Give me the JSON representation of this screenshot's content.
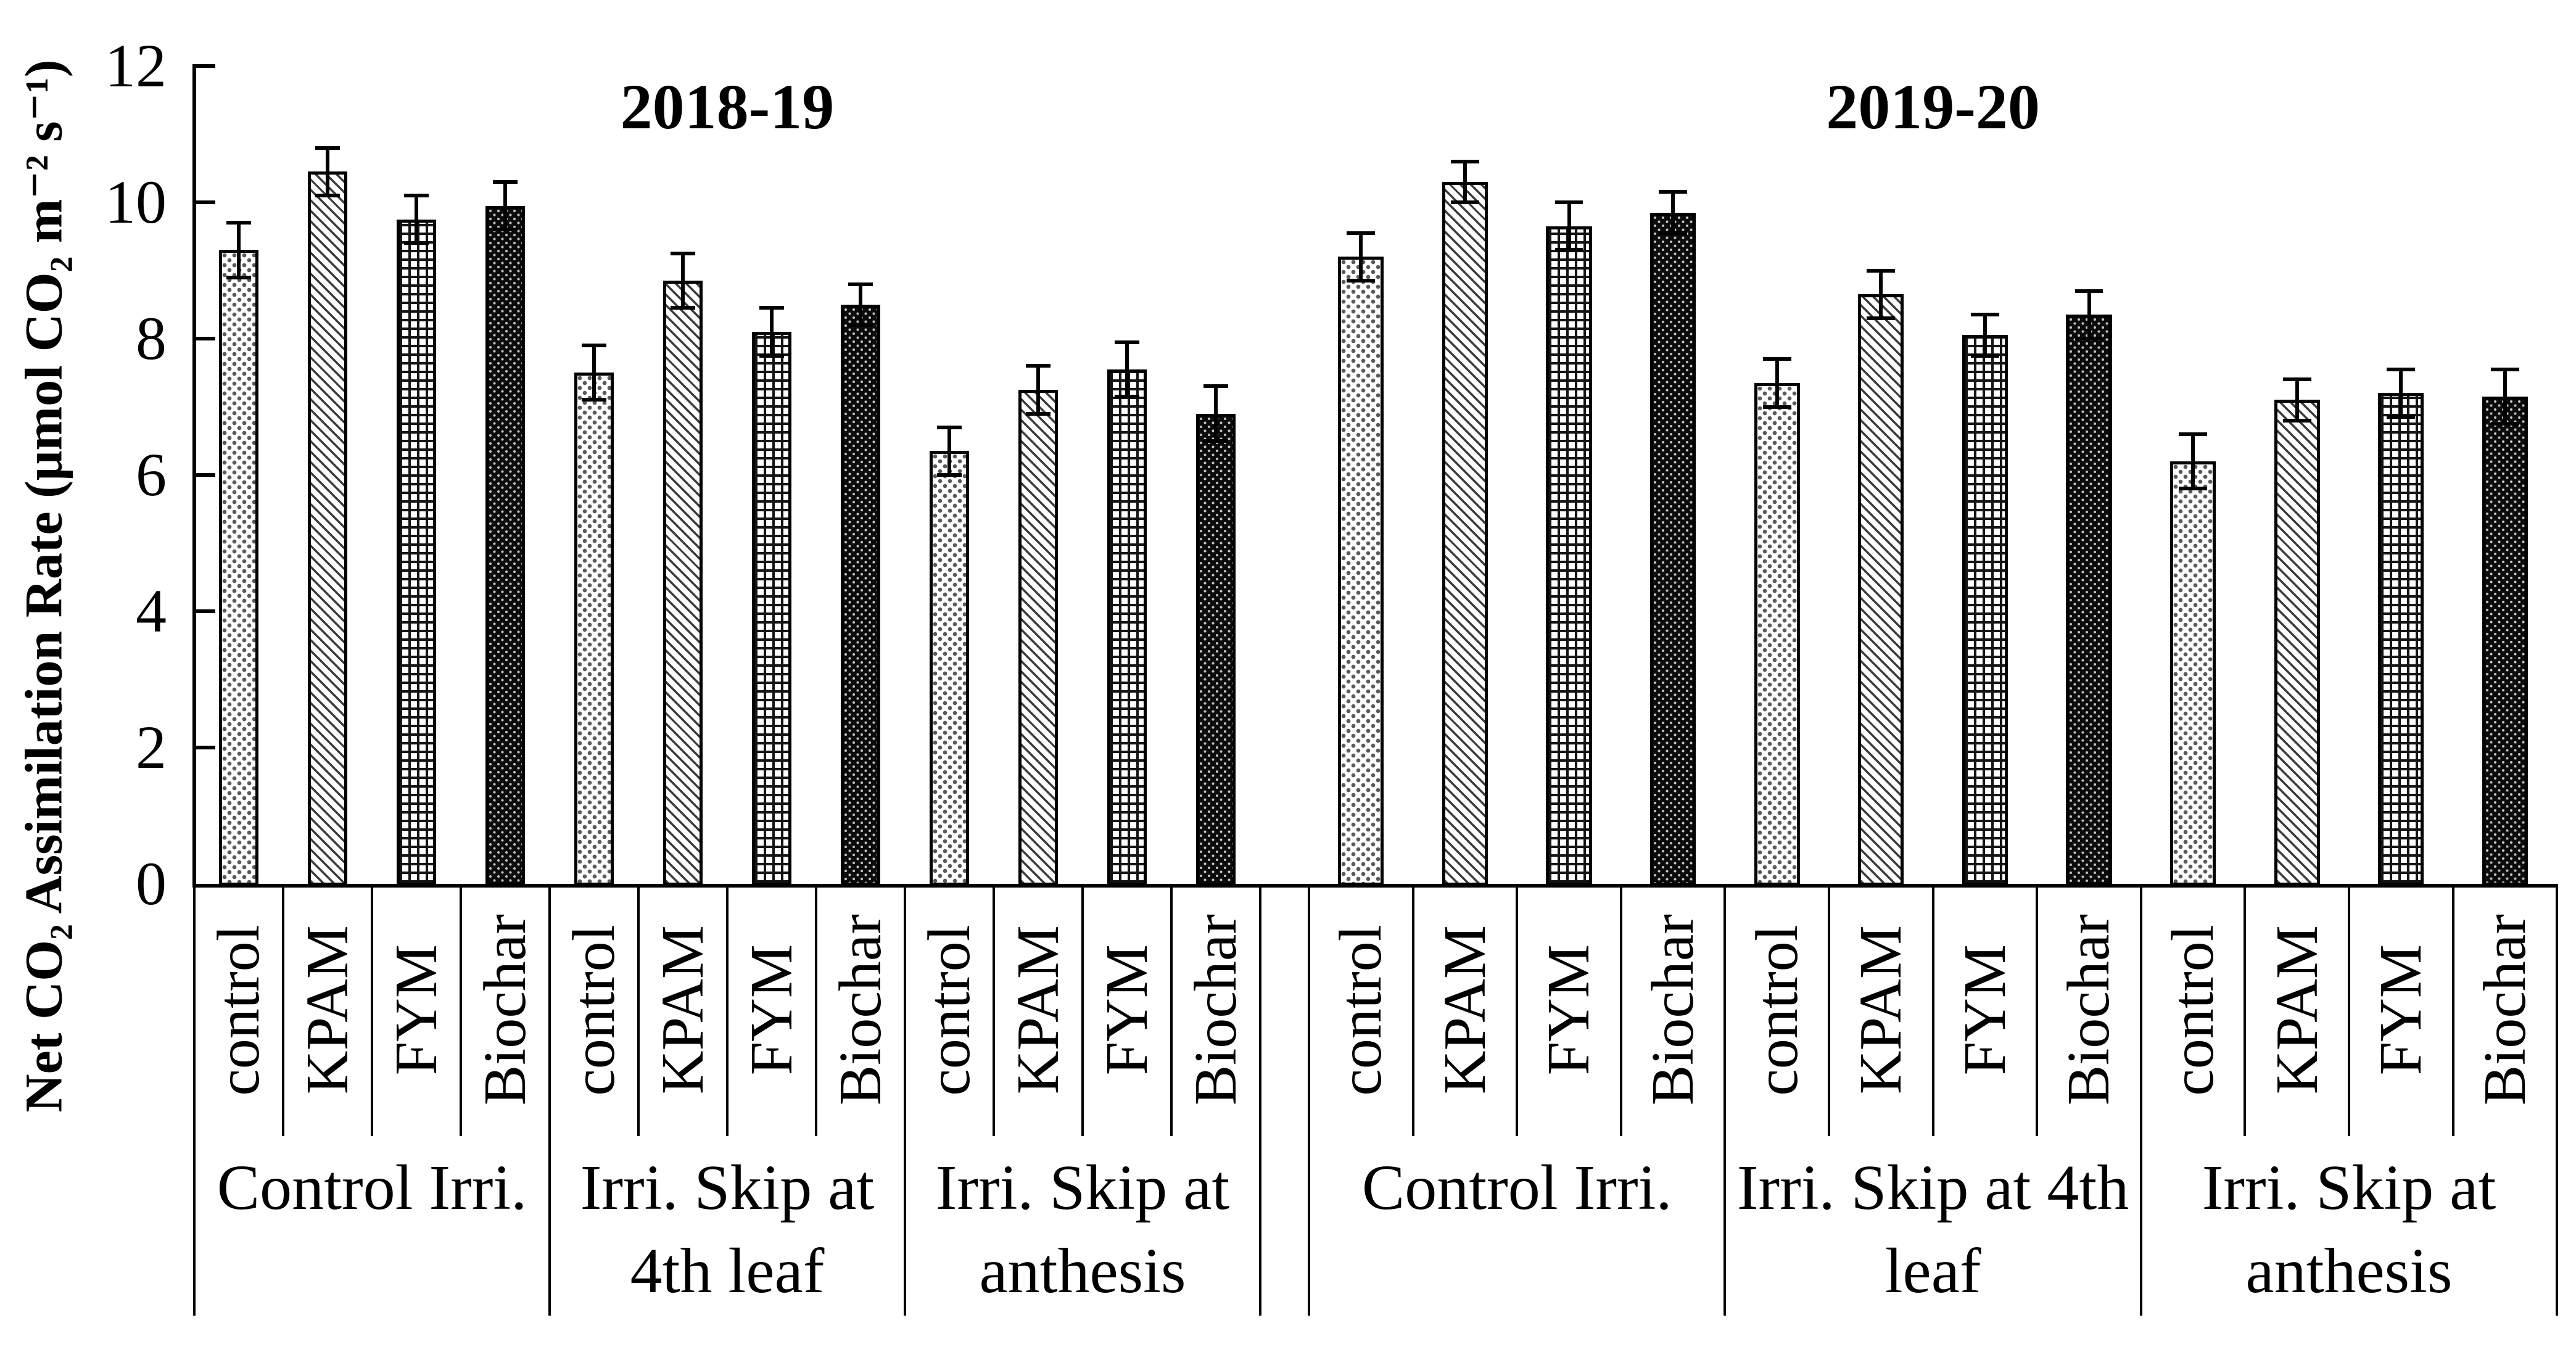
{
  "figure": {
    "background": "#ffffff",
    "ink_color": "#000000"
  },
  "chart_data": {
    "type": "bar",
    "title": "",
    "xlabel": "",
    "ylabel": "Net CO₂ Assimilation Rate (μmol CO₂ m⁻² s⁻¹)",
    "ylim": [
      0,
      12
    ],
    "yticks": [
      0,
      2,
      4,
      6,
      8,
      10,
      12
    ],
    "grid": false,
    "legend": "none",
    "error_bars": true,
    "bar_treatments": [
      "control",
      "KPAM",
      "FYM",
      "Biochar"
    ],
    "bar_patterns": {
      "control": "sparse-gray-dot-fill",
      "KPAM": "thin-diagonal-hatch",
      "FYM": "crosshatch-grid",
      "Biochar": "solid-black-with-white-dots"
    },
    "panels": [
      {
        "title": "2018-19",
        "groups": [
          {
            "label": "Control Irri.",
            "values": [
              9.3,
              10.45,
              9.75,
              9.95
            ],
            "errors": [
              0.4,
              0.35,
              0.35,
              0.35
            ]
          },
          {
            "label": "Irri. Skip at\n4th leaf",
            "values": [
              7.5,
              8.85,
              8.1,
              8.5
            ],
            "errors": [
              0.4,
              0.4,
              0.35,
              0.3
            ]
          },
          {
            "label": "Irri. Skip at\nanthesis",
            "values": [
              6.35,
              7.25,
              7.55,
              6.9
            ],
            "errors": [
              0.35,
              0.35,
              0.4,
              0.4
            ]
          }
        ]
      },
      {
        "title": "2019-20",
        "groups": [
          {
            "label": "Control Irri.",
            "values": [
              9.2,
              10.3,
              9.65,
              9.85
            ],
            "errors": [
              0.35,
              0.3,
              0.35,
              0.3
            ]
          },
          {
            "label": "Irri. Skip at 4th\nleaf",
            "values": [
              7.35,
              8.65,
              8.05,
              8.35
            ],
            "errors": [
              0.35,
              0.35,
              0.3,
              0.35
            ]
          },
          {
            "label": "Irri. Skip at\nanthesis",
            "values": [
              6.2,
              7.1,
              7.2,
              7.15
            ],
            "errors": [
              0.4,
              0.3,
              0.35,
              0.4
            ]
          }
        ]
      }
    ]
  }
}
